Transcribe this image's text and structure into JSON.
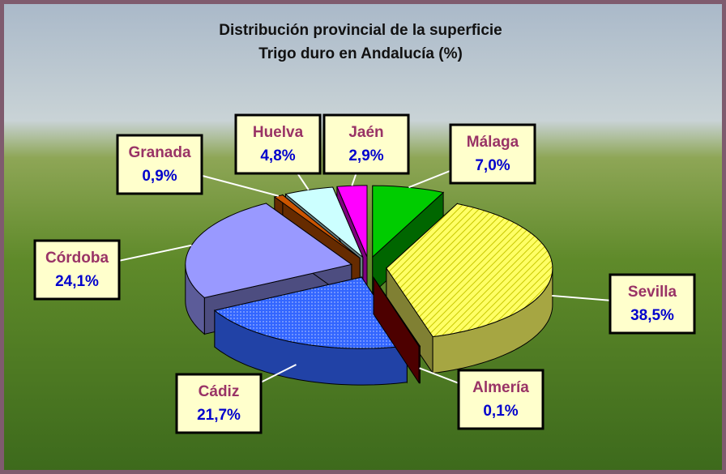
{
  "chart_data": {
    "type": "pie3d",
    "title": "Distribución provincial de la superficie",
    "subtitle": "Trigo duro en Andalucía (%)",
    "categories": [
      "Málaga",
      "Sevilla",
      "Almería",
      "Cádiz",
      "Córdoba",
      "Granada",
      "Huelva",
      "Jaén"
    ],
    "values": [
      7.0,
      38.5,
      0.1,
      21.7,
      24.1,
      0.9,
      4.8,
      2.9
    ],
    "value_labels": [
      "7,0%",
      "38,5%",
      "0,1%",
      "21,7%",
      "24,1%",
      "0,9%",
      "4,8%",
      "2,9%"
    ],
    "colors": [
      "#00cc00",
      "#ffff66",
      "#990000",
      "#3366ff",
      "#9999ff",
      "#cc5500",
      "#ccffff",
      "#ff00ff"
    ]
  }
}
